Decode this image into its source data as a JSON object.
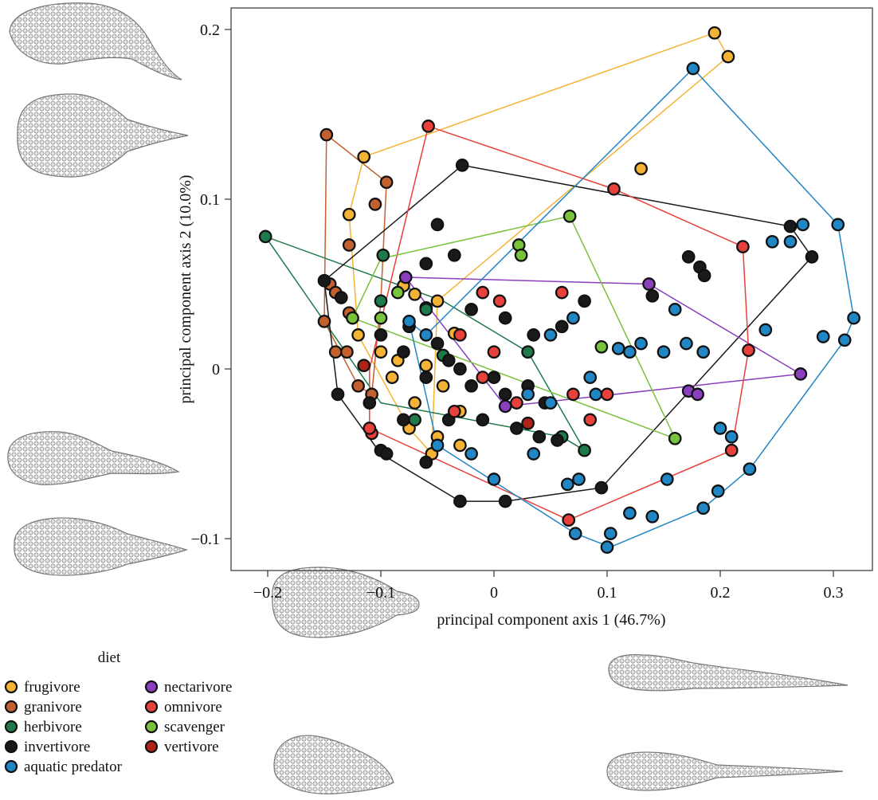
{
  "chart_data": {
    "type": "scatter",
    "xlabel": "principal component axis 1 (46.7%)",
    "ylabel": "principal component axis 2 (10.0%)",
    "xlim": [
      -0.23,
      0.32
    ],
    "ylim": [
      -0.12,
      0.21
    ],
    "xticks": [
      -0.2,
      -0.1,
      0,
      0.1,
      0.2,
      0.3
    ],
    "xtick_labels": [
      "−0.2",
      "−0.1",
      "0",
      "0.1",
      "0.2",
      "0.3"
    ],
    "yticks": [
      -0.1,
      0,
      0.1,
      0.2
    ],
    "ytick_labels": [
      "−0.1",
      "0",
      "0.1",
      "0.2"
    ],
    "legend": {
      "title": "diet",
      "placement": "bottom-left"
    },
    "series": [
      {
        "name": "frugivore",
        "color": "#f5b335",
        "points": [
          [
            0.195,
            0.198
          ],
          [
            0.207,
            0.184
          ],
          [
            -0.115,
            0.125
          ],
          [
            0.13,
            0.118
          ],
          [
            -0.128,
            0.091
          ],
          [
            -0.08,
            0.049
          ],
          [
            -0.07,
            0.044
          ],
          [
            -0.05,
            0.04
          ],
          [
            -0.06,
            0.036
          ],
          [
            -0.12,
            0.02
          ],
          [
            -0.1,
            0.01
          ],
          [
            -0.085,
            0.005
          ],
          [
            -0.06,
            0.002
          ],
          [
            -0.045,
            -0.01
          ],
          [
            -0.07,
            -0.02
          ],
          [
            -0.03,
            -0.025
          ],
          [
            -0.075,
            -0.035
          ],
          [
            -0.05,
            -0.04
          ],
          [
            -0.03,
            -0.045
          ],
          [
            -0.055,
            -0.05
          ],
          [
            -0.035,
            0.021
          ],
          [
            -0.09,
            -0.005
          ]
        ]
      },
      {
        "name": "granivore",
        "color": "#c2602f",
        "points": [
          [
            -0.148,
            0.138
          ],
          [
            -0.095,
            0.11
          ],
          [
            -0.105,
            0.097
          ],
          [
            -0.128,
            0.073
          ],
          [
            -0.15,
            0.028
          ],
          [
            -0.145,
            0.05
          ],
          [
            -0.14,
            0.045
          ],
          [
            -0.128,
            0.033
          ],
          [
            -0.13,
            0.01
          ],
          [
            -0.12,
            -0.01
          ],
          [
            -0.108,
            -0.015
          ],
          [
            -0.14,
            0.01
          ]
        ]
      },
      {
        "name": "herbivore",
        "color": "#1e7a4a",
        "points": [
          [
            -0.202,
            0.078
          ],
          [
            -0.098,
            0.067
          ],
          [
            -0.1,
            0.04
          ],
          [
            -0.06,
            0.035
          ],
          [
            -0.045,
            0.008
          ],
          [
            0.03,
            0.01
          ],
          [
            0.06,
            -0.04
          ],
          [
            0.08,
            -0.048
          ],
          [
            -0.07,
            -0.03
          ]
        ]
      },
      {
        "name": "invertivore",
        "color": "#1a1a1a",
        "points": [
          [
            -0.028,
            0.12
          ],
          [
            -0.05,
            0.085
          ],
          [
            -0.035,
            0.067
          ],
          [
            -0.06,
            0.062
          ],
          [
            -0.15,
            0.052
          ],
          [
            0.262,
            0.084
          ],
          [
            0.281,
            0.066
          ],
          [
            0.172,
            0.066
          ],
          [
            0.182,
            0.06
          ],
          [
            0.186,
            0.055
          ],
          [
            0.14,
            0.043
          ],
          [
            -0.135,
            0.042
          ],
          [
            -0.1,
            0.02
          ],
          [
            -0.08,
            0.01
          ],
          [
            -0.04,
            0.005
          ],
          [
            -0.06,
            -0.005
          ],
          [
            -0.02,
            -0.01
          ],
          [
            0.01,
            -0.015
          ],
          [
            -0.11,
            -0.02
          ],
          [
            -0.138,
            -0.015
          ],
          [
            -0.08,
            -0.03
          ],
          [
            -0.04,
            -0.03
          ],
          [
            -0.01,
            -0.03
          ],
          [
            0.02,
            -0.035
          ],
          [
            0.04,
            -0.04
          ],
          [
            -0.1,
            -0.048
          ],
          [
            -0.095,
            -0.05
          ],
          [
            -0.06,
            -0.055
          ],
          [
            0.095,
            -0.07
          ],
          [
            -0.03,
            -0.078
          ],
          [
            0.01,
            -0.078
          ],
          [
            0.056,
            -0.042
          ],
          [
            0.045,
            -0.02
          ],
          [
            -0.02,
            0.035
          ],
          [
            0.01,
            0.03
          ],
          [
            0.035,
            0.02
          ],
          [
            0.06,
            0.025
          ],
          [
            0.08,
            0.04
          ],
          [
            -0.075,
            0.025
          ],
          [
            -0.05,
            0.015
          ],
          [
            -0.03,
            0.0
          ],
          [
            0.0,
            -0.005
          ],
          [
            0.03,
            -0.01
          ]
        ]
      },
      {
        "name": "nectarivore",
        "color": "#8a3fbf",
        "points": [
          [
            -0.078,
            0.054
          ],
          [
            0.137,
            0.05
          ],
          [
            0.271,
            -0.003
          ],
          [
            0.172,
            -0.013
          ],
          [
            0.18,
            -0.015
          ],
          [
            0.01,
            -0.022
          ]
        ]
      },
      {
        "name": "omnivore",
        "color": "#e8403a",
        "points": [
          [
            -0.058,
            0.143
          ],
          [
            0.106,
            0.106
          ],
          [
            0.22,
            0.072
          ],
          [
            0.225,
            0.011
          ],
          [
            0.21,
            -0.048
          ],
          [
            0.066,
            -0.089
          ],
          [
            -0.108,
            -0.038
          ],
          [
            -0.11,
            -0.035
          ],
          [
            -0.01,
            0.045
          ],
          [
            0.005,
            0.04
          ],
          [
            -0.03,
            0.02
          ],
          [
            0.0,
            0.01
          ],
          [
            -0.01,
            -0.005
          ],
          [
            0.02,
            -0.02
          ],
          [
            -0.035,
            -0.025
          ],
          [
            0.07,
            -0.015
          ],
          [
            0.085,
            -0.03
          ],
          [
            0.06,
            0.045
          ],
          [
            0.1,
            -0.015
          ]
        ]
      },
      {
        "name": "scavenger",
        "color": "#78c23c",
        "points": [
          [
            0.067,
            0.09
          ],
          [
            0.022,
            0.073
          ],
          [
            0.024,
            0.067
          ],
          [
            -0.125,
            0.03
          ],
          [
            -0.1,
            0.03
          ],
          [
            0.095,
            0.013
          ],
          [
            0.16,
            -0.041
          ],
          [
            -0.085,
            0.045
          ]
        ]
      },
      {
        "name": "vertivore",
        "color": "#b02418",
        "points": [
          [
            -0.115,
            0.002
          ],
          [
            0.03,
            -0.032
          ]
        ]
      },
      {
        "name": "aquatic predator",
        "color": "#2186c4",
        "points": [
          [
            0.176,
            0.177
          ],
          [
            0.304,
            0.085
          ],
          [
            0.273,
            0.085
          ],
          [
            0.262,
            0.075
          ],
          [
            0.246,
            0.075
          ],
          [
            0.318,
            0.03
          ],
          [
            0.291,
            0.019
          ],
          [
            0.31,
            0.017
          ],
          [
            0.24,
            0.023
          ],
          [
            0.226,
            -0.059
          ],
          [
            0.198,
            -0.072
          ],
          [
            0.185,
            -0.082
          ],
          [
            0.153,
            -0.065
          ],
          [
            0.14,
            -0.087
          ],
          [
            0.12,
            -0.085
          ],
          [
            0.103,
            -0.097
          ],
          [
            0.1,
            -0.105
          ],
          [
            0.072,
            -0.097
          ],
          [
            0.065,
            -0.068
          ],
          [
            0.15,
            0.01
          ],
          [
            0.16,
            0.035
          ],
          [
            0.17,
            0.015
          ],
          [
            0.13,
            0.015
          ],
          [
            0.11,
            0.012
          ],
          [
            0.12,
            0.01
          ],
          [
            0.185,
            0.01
          ],
          [
            0.2,
            -0.035
          ],
          [
            0.21,
            -0.04
          ],
          [
            0.09,
            -0.015
          ],
          [
            0.075,
            -0.065
          ],
          [
            0.05,
            -0.02
          ],
          [
            0.03,
            -0.015
          ],
          [
            -0.02,
            -0.05
          ],
          [
            -0.05,
            -0.045
          ],
          [
            0.0,
            -0.065
          ],
          [
            0.035,
            -0.05
          ],
          [
            -0.06,
            0.02
          ],
          [
            -0.075,
            0.028
          ],
          [
            0.07,
            0.03
          ],
          [
            0.05,
            0.02
          ],
          [
            0.085,
            -0.005
          ]
        ]
      }
    ],
    "hulls": {
      "frugivore": [
        [
          0.195,
          0.198
        ],
        [
          0.207,
          0.184
        ],
        [
          -0.05,
          0.04
        ],
        [
          -0.055,
          -0.05
        ],
        [
          -0.075,
          -0.035
        ],
        [
          -0.12,
          0.02
        ],
        [
          -0.128,
          0.091
        ],
        [
          -0.115,
          0.125
        ]
      ],
      "granivore": [
        [
          -0.148,
          0.138
        ],
        [
          -0.095,
          0.11
        ],
        [
          -0.1,
          0.04
        ],
        [
          -0.108,
          -0.015
        ],
        [
          -0.12,
          -0.01
        ],
        [
          -0.15,
          0.028
        ]
      ],
      "herbivore": [
        [
          -0.202,
          0.078
        ],
        [
          -0.045,
          0.04
        ],
        [
          0.03,
          0.01
        ],
        [
          0.08,
          -0.048
        ],
        [
          0.06,
          -0.04
        ],
        [
          -0.1,
          -0.02
        ]
      ],
      "invertivore": [
        [
          -0.028,
          0.12
        ],
        [
          0.262,
          0.084
        ],
        [
          0.281,
          0.066
        ],
        [
          0.095,
          -0.07
        ],
        [
          0.01,
          -0.078
        ],
        [
          -0.03,
          -0.078
        ],
        [
          -0.1,
          -0.05
        ],
        [
          -0.138,
          -0.015
        ],
        [
          -0.15,
          0.052
        ]
      ],
      "nectarivore": [
        [
          -0.078,
          0.054
        ],
        [
          0.137,
          0.05
        ],
        [
          0.271,
          -0.003
        ],
        [
          0.01,
          -0.022
        ]
      ],
      "omnivore": [
        [
          -0.058,
          0.143
        ],
        [
          0.106,
          0.106
        ],
        [
          0.22,
          0.072
        ],
        [
          0.225,
          0.011
        ],
        [
          0.21,
          -0.048
        ],
        [
          0.066,
          -0.089
        ],
        [
          -0.11,
          -0.035
        ],
        [
          -0.11,
          0.0
        ]
      ],
      "scavenger": [
        [
          0.067,
          0.09
        ],
        [
          0.16,
          -0.041
        ],
        [
          -0.125,
          0.03
        ],
        [
          -0.1,
          0.065
        ]
      ],
      "aquatic predator": [
        [
          0.176,
          0.177
        ],
        [
          0.304,
          0.085
        ],
        [
          0.318,
          0.03
        ],
        [
          0.31,
          0.017
        ],
        [
          0.226,
          -0.059
        ],
        [
          0.185,
          -0.082
        ],
        [
          0.103,
          -0.105
        ],
        [
          0.072,
          -0.097
        ],
        [
          -0.05,
          -0.045
        ],
        [
          -0.075,
          0.028
        ],
        [
          -0.06,
          0.02
        ]
      ]
    }
  }
}
